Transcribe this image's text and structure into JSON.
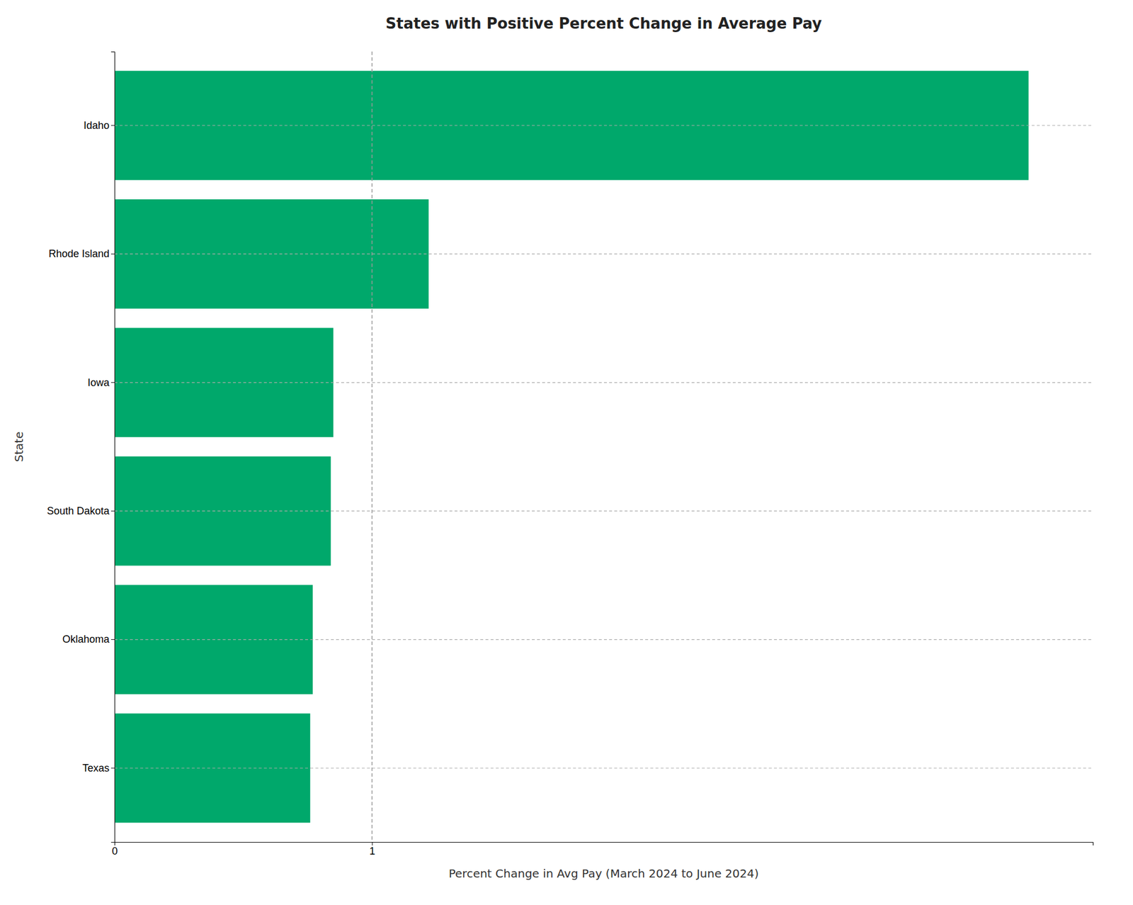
{
  "chart_data": {
    "type": "bar",
    "orientation": "horizontal",
    "title": "States with Positive Percent Change in Average Pay",
    "xlabel": "Percent Change in Avg Pay (March 2024 to June 2024)",
    "ylabel": "State",
    "categories": [
      "Texas",
      "Oklahoma",
      "South Dakota",
      "Iowa",
      "Rhode Island",
      "Idaho"
    ],
    "values": [
      0.76,
      0.77,
      0.84,
      0.85,
      1.22,
      3.55
    ],
    "color": "#00A86B",
    "xlim": [
      0,
      3.8
    ],
    "xticks": [
      0,
      1
    ],
    "grid": true,
    "annotations": [
      {
        "x": 1.0,
        "line_style": "dashed"
      }
    ]
  }
}
